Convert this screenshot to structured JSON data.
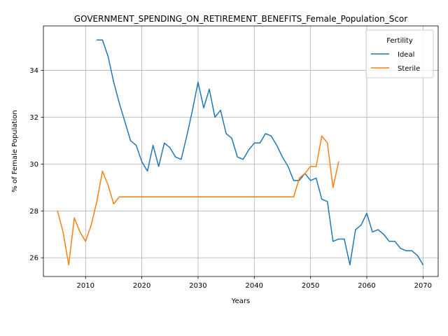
{
  "chart_data": {
    "type": "line",
    "title": "GOVERNMENT_SPENDING_ON_RETIREMENT_BENEFITS_Female_Population_Scor",
    "xlabel": "Years",
    "ylabel": "% of Female Population",
    "xlim": [
      2002.5,
      2072.7
    ],
    "ylim": [
      25.2,
      35.9
    ],
    "xticks": [
      2010,
      2020,
      2030,
      2040,
      2050,
      2060,
      2070
    ],
    "yticks": [
      26,
      28,
      30,
      32,
      34
    ],
    "grid": true,
    "legend": {
      "title": "Fertility",
      "position": "top-right"
    },
    "series": [
      {
        "name": "Ideal",
        "color": "#1f77b4",
        "points": [
          [
            2012,
            35.3
          ],
          [
            2013,
            35.3
          ],
          [
            2014,
            34.6
          ],
          [
            2015,
            33.5
          ],
          [
            2016,
            32.6
          ],
          [
            2017,
            31.8
          ],
          [
            2018,
            31.0
          ],
          [
            2019,
            30.8
          ],
          [
            2020,
            30.1
          ],
          [
            2021,
            29.7
          ],
          [
            2022,
            30.8
          ],
          [
            2023,
            29.9
          ],
          [
            2024,
            30.9
          ],
          [
            2025,
            30.7
          ],
          [
            2026,
            30.3
          ],
          [
            2027,
            30.2
          ],
          [
            2028,
            31.2
          ],
          [
            2029,
            32.3
          ],
          [
            2030,
            33.5
          ],
          [
            2031,
            32.4
          ],
          [
            2032,
            33.2
          ],
          [
            2033,
            32.0
          ],
          [
            2034,
            32.3
          ],
          [
            2035,
            31.3
          ],
          [
            2036,
            31.1
          ],
          [
            2037,
            30.3
          ],
          [
            2038,
            30.2
          ],
          [
            2039,
            30.6
          ],
          [
            2040,
            30.9
          ],
          [
            2041,
            30.9
          ],
          [
            2042,
            31.3
          ],
          [
            2043,
            31.2
          ],
          [
            2044,
            30.8
          ],
          [
            2045,
            30.3
          ],
          [
            2046,
            29.9
          ],
          [
            2047,
            29.3
          ],
          [
            2048,
            29.3
          ],
          [
            2049,
            29.6
          ],
          [
            2050,
            29.3
          ],
          [
            2051,
            29.4
          ],
          [
            2052,
            28.5
          ],
          [
            2053,
            28.4
          ],
          [
            2054,
            26.7
          ],
          [
            2055,
            26.8
          ],
          [
            2056,
            26.8
          ],
          [
            2057,
            25.7
          ],
          [
            2058,
            27.2
          ],
          [
            2059,
            27.4
          ],
          [
            2060,
            27.9
          ],
          [
            2061,
            27.1
          ],
          [
            2062,
            27.2
          ],
          [
            2063,
            27.0
          ],
          [
            2064,
            26.7
          ],
          [
            2065,
            26.7
          ],
          [
            2066,
            26.4
          ],
          [
            2067,
            26.3
          ],
          [
            2068,
            26.3
          ],
          [
            2069,
            26.1
          ],
          [
            2070,
            25.7
          ]
        ]
      },
      {
        "name": "Sterile",
        "color": "#ff7f0e",
        "points": [
          [
            2005,
            28.0
          ],
          [
            2006,
            27.1
          ],
          [
            2007,
            25.7
          ],
          [
            2008,
            27.7
          ],
          [
            2009,
            27.1
          ],
          [
            2010,
            26.7
          ],
          [
            2011,
            27.4
          ],
          [
            2012,
            28.4
          ],
          [
            2013,
            29.7
          ],
          [
            2014,
            29.1
          ],
          [
            2015,
            28.3
          ],
          [
            2016,
            28.6
          ],
          [
            2017,
            28.6
          ],
          [
            2018,
            28.6
          ],
          [
            2019,
            28.6
          ],
          [
            2020,
            28.6
          ],
          [
            2021,
            28.6
          ],
          [
            2022,
            28.6
          ],
          [
            2023,
            28.6
          ],
          [
            2024,
            28.6
          ],
          [
            2025,
            28.6
          ],
          [
            2026,
            28.6
          ],
          [
            2027,
            28.6
          ],
          [
            2028,
            28.6
          ],
          [
            2029,
            28.6
          ],
          [
            2030,
            28.6
          ],
          [
            2031,
            28.6
          ],
          [
            2032,
            28.6
          ],
          [
            2033,
            28.6
          ],
          [
            2034,
            28.6
          ],
          [
            2035,
            28.6
          ],
          [
            2036,
            28.6
          ],
          [
            2037,
            28.6
          ],
          [
            2038,
            28.6
          ],
          [
            2039,
            28.6
          ],
          [
            2040,
            28.6
          ],
          [
            2041,
            28.6
          ],
          [
            2042,
            28.6
          ],
          [
            2043,
            28.6
          ],
          [
            2044,
            28.6
          ],
          [
            2045,
            28.6
          ],
          [
            2046,
            28.6
          ],
          [
            2047,
            28.6
          ],
          [
            2048,
            29.4
          ],
          [
            2049,
            29.6
          ],
          [
            2050,
            29.9
          ],
          [
            2051,
            29.9
          ],
          [
            2052,
            31.2
          ],
          [
            2053,
            30.9
          ],
          [
            2054,
            29.0
          ],
          [
            2055,
            30.1
          ]
        ]
      }
    ]
  }
}
